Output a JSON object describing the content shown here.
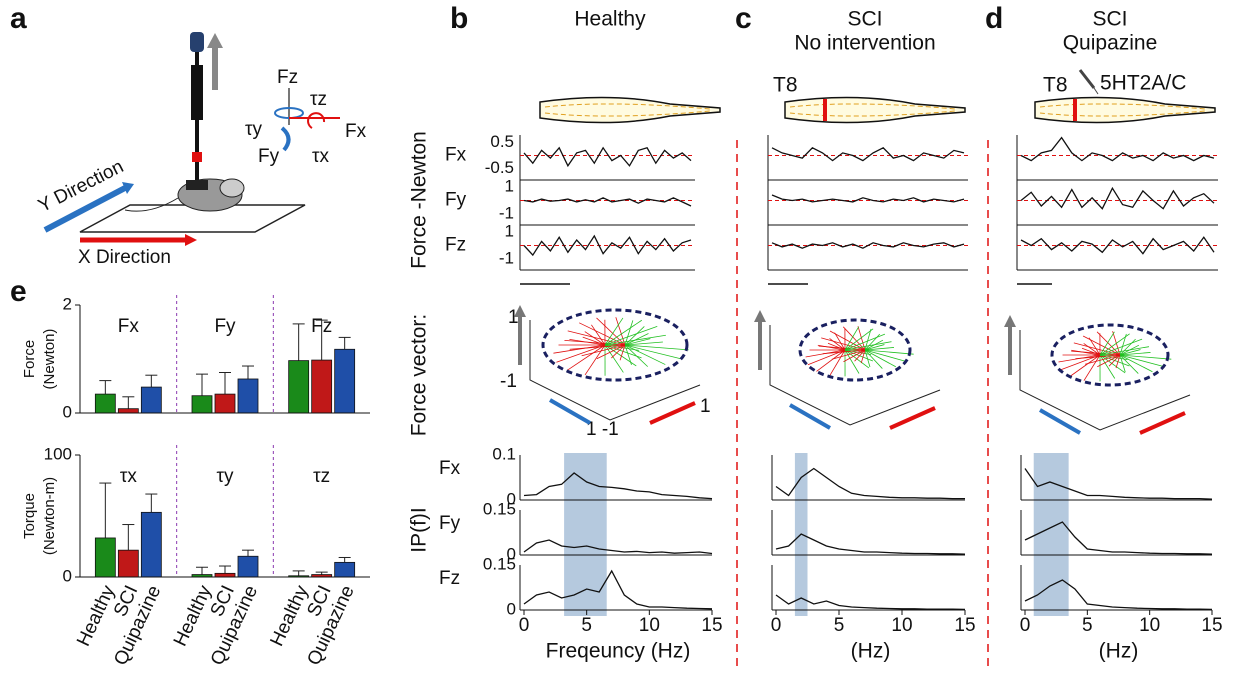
{
  "panel_labels": [
    "a",
    "b",
    "c",
    "d",
    "e"
  ],
  "panel_a": {
    "y_direction": "Y Direction",
    "x_direction": "X Direction",
    "fz": "Fz",
    "tz": "τz",
    "ty": "τy",
    "fx": "Fx",
    "fy": "Fy",
    "tx": "τx"
  },
  "columns": [
    {
      "title": [
        "Healthy"
      ]
    },
    {
      "title": [
        "SCI",
        "No intervention"
      ],
      "level": "T8"
    },
    {
      "title": [
        "SCI",
        "Quipazine"
      ],
      "level": "T8",
      "drug": "5HT2A/C"
    }
  ],
  "row_labels": {
    "traces": "Force -Newton",
    "vector": "Force vector:",
    "spectrum": "IP(f)I"
  },
  "vector_ticks": {
    "up": "1",
    "down": "-1",
    "bottom": "1 -1",
    "right": "1"
  },
  "chart_data": [
    {
      "type": "bar",
      "ylabel": [
        "Force",
        "(Newton)"
      ],
      "categories": [
        "Fx",
        "Fy",
        "Fz"
      ],
      "ylim": [
        0,
        2
      ],
      "yticks": [
        0,
        2
      ],
      "series": [
        {
          "name": "Healthy",
          "color": "#1a8a1a",
          "values": [
            0.35,
            0.32,
            0.97
          ],
          "errors": [
            0.25,
            0.4,
            0.68
          ]
        },
        {
          "name": "SCI",
          "color": "#c01818",
          "values": [
            0.08,
            0.35,
            0.98
          ],
          "errors": [
            0.22,
            0.4,
            0.74
          ]
        },
        {
          "name": "Quipazine",
          "color": "#1f4fa8",
          "values": [
            0.48,
            0.63,
            1.18
          ],
          "errors": [
            0.22,
            0.24,
            0.22
          ]
        }
      ]
    },
    {
      "type": "bar",
      "ylabel": [
        "Torque",
        "(Newton-m)"
      ],
      "categories": [
        "τx",
        "τy",
        "τz"
      ],
      "ylim": [
        0,
        100
      ],
      "yticks": [
        0,
        100
      ],
      "series": [
        {
          "name": "Healthy",
          "color": "#1a8a1a",
          "values": [
            32,
            2,
            1
          ],
          "errors": [
            45,
            6,
            4
          ]
        },
        {
          "name": "SCI",
          "color": "#c01818",
          "values": [
            22,
            3,
            2
          ],
          "errors": [
            21,
            6,
            2
          ]
        },
        {
          "name": "Quipazine",
          "color": "#1f4fa8",
          "values": [
            53,
            17,
            12
          ],
          "errors": [
            15,
            5,
            4
          ]
        }
      ]
    },
    {
      "type": "trace",
      "rows": [
        {
          "label": "Fx",
          "ylim": [
            -0.8,
            0.8
          ],
          "yticks": [
            0.5,
            -0.5
          ],
          "values": [
            0.1,
            -0.3,
            0.2,
            -0.1,
            0.3,
            -0.4,
            0.1,
            0.2,
            -0.3,
            0.3,
            -0.2,
            0.0,
            -0.4,
            0.2,
            0.3,
            -0.3,
            0.2,
            -0.1,
            0.1,
            -0.2
          ]
        },
        {
          "label": "Fy",
          "ylim": [
            -1.5,
            1.5
          ],
          "yticks": [
            1,
            -1
          ],
          "values": [
            0.0,
            -0.1,
            0.1,
            -0.05,
            0.0,
            0.1,
            -0.1,
            0.05,
            -0.1,
            0.2,
            -0.1,
            0.0,
            0.1,
            -0.2,
            0.1,
            0.0,
            -0.1,
            0.2,
            -0.1,
            -0.4
          ]
        },
        {
          "label": "Fz",
          "ylim": [
            -1.5,
            1.5
          ],
          "yticks": [
            1,
            -1
          ],
          "values": [
            0.0,
            -0.7,
            0.3,
            -0.4,
            0.6,
            -0.5,
            0.4,
            -0.3,
            0.7,
            -0.6,
            0.2,
            -0.2,
            0.6,
            -0.6,
            0.3,
            -0.3,
            0.5,
            -0.4,
            0.2,
            0.4
          ]
        }
      ]
    },
    {
      "type": "trace",
      "rows": [
        {
          "ylim": [
            -0.8,
            0.8
          ],
          "values": [
            0.3,
            0.1,
            0.0,
            -0.1,
            0.3,
            0.1,
            -0.2,
            0.1,
            0.0,
            -0.2,
            0.1,
            0.3,
            -0.1,
            0.0,
            -0.2,
            0.1,
            0.0,
            -0.1,
            0.2,
            0.1
          ]
        },
        {
          "ylim": [
            -1.5,
            1.5
          ],
          "values": [
            0.4,
            0.1,
            0.0,
            0.1,
            -0.1,
            0.0,
            0.1,
            0.0,
            -0.1,
            0.2,
            0.0,
            -0.1,
            0.1,
            0.0,
            0.2,
            -0.1,
            0.1,
            0.0,
            -0.1,
            0.1
          ]
        },
        {
          "ylim": [
            -1.5,
            1.5
          ],
          "values": [
            0.2,
            -0.1,
            0.1,
            -0.2,
            0.1,
            0.0,
            0.2,
            -0.1,
            0.1,
            -0.2,
            0.2,
            0.0,
            -0.1,
            0.2,
            0.0,
            -0.1,
            0.1,
            0.2,
            -0.1,
            0.1
          ]
        }
      ]
    },
    {
      "type": "trace",
      "rows": [
        {
          "ylim": [
            -0.8,
            0.8
          ],
          "values": [
            0.0,
            -0.2,
            0.1,
            0.2,
            0.7,
            0.1,
            -0.2,
            0.1,
            0.0,
            -0.2,
            0.1,
            -0.1,
            0.0,
            -0.2,
            0.1,
            -0.1,
            0.0,
            -0.2,
            0.0,
            -0.1
          ]
        },
        {
          "ylim": [
            -1.5,
            1.5
          ],
          "values": [
            0.0,
            0.6,
            -0.4,
            0.3,
            -0.5,
            0.8,
            -0.5,
            0.2,
            -0.6,
            0.9,
            -0.3,
            -0.5,
            0.7,
            0.0,
            -0.6,
            0.7,
            -0.4,
            0.2,
            0.5,
            -0.2
          ]
        },
        {
          "ylim": [
            -1.5,
            1.5
          ],
          "values": [
            0.4,
            0.0,
            0.5,
            -0.3,
            0.2,
            -0.4,
            0.3,
            0.1,
            -0.5,
            0.4,
            -0.1,
            0.3,
            -0.6,
            0.5,
            -0.3,
            0.0,
            0.3,
            -0.4,
            0.6,
            -0.5
          ]
        }
      ]
    },
    {
      "type": "spectrum",
      "xlabel": "Freqeuncy (Hz)",
      "x": [
        0,
        1,
        2,
        3,
        4,
        5,
        6,
        7,
        8,
        9,
        10,
        11,
        12,
        13,
        14,
        15
      ],
      "xlim": [
        0,
        15
      ],
      "xticks": [
        0,
        5,
        10,
        15
      ],
      "highlight": [
        3.2,
        6.6
      ],
      "rows": [
        {
          "label": "Fx",
          "ylim": [
            0,
            0.1
          ],
          "yticks": [
            0,
            0.1
          ],
          "values": [
            0.01,
            0.012,
            0.03,
            0.035,
            0.06,
            0.04,
            0.03,
            0.028,
            0.025,
            0.02,
            0.018,
            0.012,
            0.01,
            0.008,
            0.005,
            0.003
          ]
        },
        {
          "label": "Fy",
          "ylim": [
            0,
            0.15
          ],
          "yticks": [
            0,
            0.15
          ],
          "values": [
            0.01,
            0.04,
            0.05,
            0.03,
            0.025,
            0.03,
            0.02,
            0.015,
            0.01,
            0.012,
            0.008,
            0.01,
            0.006,
            0.008,
            0.01,
            0.005
          ]
        },
        {
          "label": "Fz",
          "ylim": [
            0,
            0.15
          ],
          "yticks": [
            0,
            0.15
          ],
          "values": [
            0.02,
            0.05,
            0.06,
            0.04,
            0.05,
            0.07,
            0.06,
            0.13,
            0.05,
            0.02,
            0.01,
            0.01,
            0.008,
            0.006,
            0.005,
            0.004
          ]
        }
      ]
    },
    {
      "type": "spectrum",
      "xlabel": "(Hz)",
      "x": [
        0,
        1,
        2,
        3,
        4,
        5,
        6,
        7,
        8,
        9,
        10,
        11,
        12,
        13,
        14,
        15
      ],
      "xlim": [
        0,
        15
      ],
      "xticks": [
        0,
        5,
        10,
        15
      ],
      "highlight": [
        1.5,
        2.5
      ],
      "rows": [
        {
          "ylim": [
            0,
            0.1
          ],
          "values": [
            0.03,
            0.01,
            0.05,
            0.07,
            0.05,
            0.03,
            0.015,
            0.01,
            0.008,
            0.006,
            0.005,
            0.005,
            0.004,
            0.004,
            0.003,
            0.003
          ]
        },
        {
          "ylim": [
            0,
            0.15
          ],
          "values": [
            0.02,
            0.03,
            0.07,
            0.05,
            0.03,
            0.02,
            0.015,
            0.01,
            0.01,
            0.008,
            0.006,
            0.005,
            0.005,
            0.004,
            0.004,
            0.003
          ]
        },
        {
          "ylim": [
            0,
            0.15
          ],
          "values": [
            0.05,
            0.02,
            0.04,
            0.02,
            0.03,
            0.015,
            0.01,
            0.008,
            0.006,
            0.005,
            0.004,
            0.004,
            0.003,
            0.003,
            0.003,
            0.002
          ]
        }
      ]
    },
    {
      "type": "spectrum",
      "xlabel": "(Hz)",
      "x": [
        0,
        1,
        2,
        3,
        4,
        5,
        6,
        7,
        8,
        9,
        10,
        11,
        12,
        13,
        14,
        15
      ],
      "xlim": [
        0,
        15
      ],
      "xticks": [
        0,
        5,
        10,
        15
      ],
      "highlight": [
        0.7,
        3.5
      ],
      "rows": [
        {
          "ylim": [
            0,
            0.1
          ],
          "values": [
            0.07,
            0.03,
            0.04,
            0.03,
            0.02,
            0.01,
            0.01,
            0.008,
            0.006,
            0.005,
            0.004,
            0.004,
            0.003,
            0.003,
            0.003,
            0.002
          ]
        },
        {
          "ylim": [
            0,
            0.15
          ],
          "values": [
            0.05,
            0.07,
            0.09,
            0.11,
            0.06,
            0.02,
            0.015,
            0.01,
            0.01,
            0.008,
            0.006,
            0.005,
            0.005,
            0.004,
            0.004,
            0.003
          ]
        },
        {
          "ylim": [
            0,
            0.15
          ],
          "values": [
            0.03,
            0.05,
            0.08,
            0.1,
            0.07,
            0.02,
            0.015,
            0.01,
            0.008,
            0.006,
            0.005,
            0.004,
            0.004,
            0.003,
            0.003,
            0.002
          ]
        }
      ]
    }
  ]
}
